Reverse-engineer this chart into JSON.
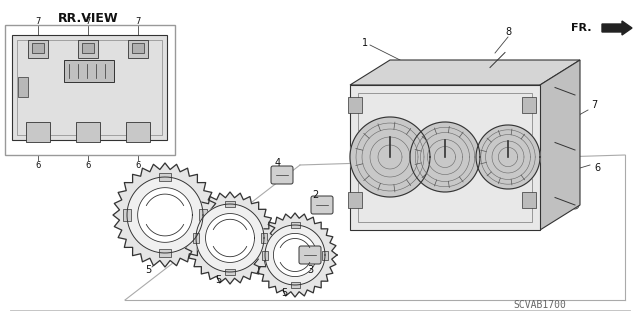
{
  "background_color": "#ffffff",
  "diagram_code": "SCVAB1700",
  "rr_view_label": "RR.VIEW",
  "fr_label": "FR.",
  "line_color": "#333333",
  "text_color": "#111111",
  "light_gray": "#d8d8d8",
  "mid_gray": "#b0b0b0",
  "dark_gray": "#888888",
  "font_size_label": 7,
  "font_size_code": 7,
  "font_size_rr": 9
}
